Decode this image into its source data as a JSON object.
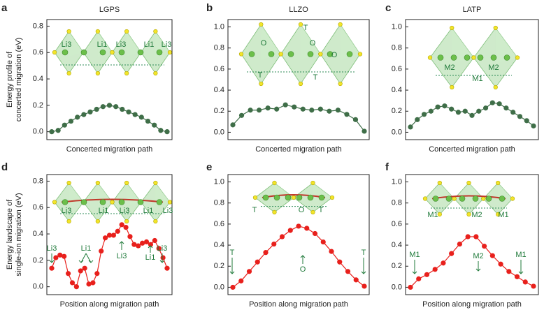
{
  "chart_data": [
    {
      "type": "line",
      "panel": "a",
      "title": "LGPS",
      "ylabel": [
        "Energy profile of",
        "concerted migration (eV)"
      ],
      "xlabel": "Concerted migration path",
      "color": "#3f6e48",
      "values": [
        0.0,
        0.01,
        0.05,
        0.08,
        0.11,
        0.13,
        0.15,
        0.17,
        0.19,
        0.2,
        0.19,
        0.17,
        0.15,
        0.13,
        0.11,
        0.08,
        0.05,
        0.01,
        0.0
      ],
      "ylim": [
        -0.06,
        0.85
      ],
      "yticks": [
        {
          "value": 0,
          "label": "0.0"
        },
        {
          "value": 0.2,
          "label": "0.2"
        },
        {
          "value": 0.4,
          "label": "0.4"
        },
        {
          "value": 0.6,
          "label": "0.6"
        },
        {
          "value": 0.8,
          "label": "0.8"
        }
      ],
      "annotations": [
        "Li3",
        "Li1",
        "Li3",
        "Li1",
        "Li3"
      ]
    },
    {
      "type": "line",
      "panel": "b",
      "title": "LLZO",
      "xlabel": "Concerted migration path",
      "color": "#3f6e48",
      "values": [
        0.07,
        0.16,
        0.21,
        0.21,
        0.23,
        0.22,
        0.26,
        0.24,
        0.22,
        0.21,
        0.22,
        0.2,
        0.21,
        0.17,
        0.12,
        0.01
      ],
      "ylim": [
        -0.07,
        1.07
      ],
      "yticks": [
        {
          "value": 0,
          "label": "0.0"
        },
        {
          "value": 0.2,
          "label": "0.2"
        },
        {
          "value": 0.4,
          "label": "0.4"
        },
        {
          "value": 0.6,
          "label": "0.6"
        },
        {
          "value": 0.8,
          "label": "0.8"
        },
        {
          "value": 1,
          "label": "1.0"
        }
      ],
      "annotations": [
        "O",
        "T",
        "O",
        "O",
        "T",
        "T"
      ]
    },
    {
      "type": "line",
      "panel": "c",
      "title": "LATP",
      "xlabel": "Concerted migration path",
      "color": "#3f6e48",
      "values": [
        0.05,
        0.12,
        0.17,
        0.2,
        0.24,
        0.25,
        0.22,
        0.19,
        0.2,
        0.16,
        0.2,
        0.23,
        0.28,
        0.27,
        0.23,
        0.19,
        0.15,
        0.11,
        0.06
      ],
      "ylim": [
        -0.07,
        1.07
      ],
      "yticks": [
        {
          "value": 0,
          "label": "0.0"
        },
        {
          "value": 0.2,
          "label": "0.2"
        },
        {
          "value": 0.4,
          "label": "0.4"
        },
        {
          "value": 0.6,
          "label": "0.6"
        },
        {
          "value": 0.8,
          "label": "0.8"
        },
        {
          "value": 1,
          "label": "1.0"
        }
      ],
      "annotations": [
        "M2",
        "M2",
        "M1"
      ]
    },
    {
      "type": "line",
      "panel": "d",
      "ylabel": [
        "Energy landscape of",
        "single-ion migration (eV)"
      ],
      "xlabel": "Position along migration path",
      "color": "#e8201c",
      "values": [
        0.14,
        0.22,
        0.24,
        0.23,
        0.1,
        0.03,
        0.0,
        0.12,
        0.14,
        0.02,
        0.03,
        0.1,
        0.27,
        0.37,
        0.39,
        0.39,
        0.42,
        0.47,
        0.45,
        0.38,
        0.32,
        0.31,
        0.33,
        0.34,
        0.32,
        0.35,
        0.29,
        0.22,
        0.14
      ],
      "ylim": [
        -0.06,
        0.85
      ],
      "yticks": [
        {
          "value": 0,
          "label": "0.0"
        },
        {
          "value": 0.2,
          "label": "0.2"
        },
        {
          "value": 0.4,
          "label": "0.4"
        },
        {
          "value": 0.6,
          "label": "0.6"
        },
        {
          "value": 0.8,
          "label": "0.8"
        }
      ],
      "annotations": [
        "Li3",
        "Li1",
        "Li3",
        "Li1",
        "Li3",
        "Li3",
        "Li1",
        "Li3",
        "Li1",
        "Li3"
      ]
    },
    {
      "type": "line",
      "panel": "e",
      "xlabel": "Position along migration path",
      "color": "#e8201c",
      "values": [
        0.0,
        0.06,
        0.15,
        0.24,
        0.33,
        0.41,
        0.48,
        0.54,
        0.58,
        0.56,
        0.51,
        0.43,
        0.34,
        0.24,
        0.15,
        0.07,
        0.01
      ],
      "ylim": [
        -0.07,
        1.07
      ],
      "yticks": [
        {
          "value": 0,
          "label": "0.0"
        },
        {
          "value": 0.2,
          "label": "0.2"
        },
        {
          "value": 0.4,
          "label": "0.4"
        },
        {
          "value": 0.6,
          "label": "0.6"
        },
        {
          "value": 0.8,
          "label": "0.8"
        },
        {
          "value": 1,
          "label": "1.0"
        }
      ],
      "annotations": [
        "T",
        "O",
        "T",
        "T",
        "O",
        "T"
      ]
    },
    {
      "type": "line",
      "panel": "f",
      "xlabel": "Position along migration path",
      "color": "#e8201c",
      "values": [
        0.0,
        0.08,
        0.12,
        0.17,
        0.23,
        0.32,
        0.41,
        0.48,
        0.48,
        0.39,
        0.3,
        0.22,
        0.15,
        0.1,
        0.05,
        0.01
      ],
      "ylim": [
        -0.07,
        1.07
      ],
      "yticks": [
        {
          "value": 0,
          "label": "0.0"
        },
        {
          "value": 0.2,
          "label": "0.2"
        },
        {
          "value": 0.4,
          "label": "0.4"
        },
        {
          "value": 0.6,
          "label": "0.6"
        },
        {
          "value": 0.8,
          "label": "0.8"
        },
        {
          "value": 1,
          "label": "1.0"
        }
      ],
      "annotations": [
        "M1",
        "M2",
        "M1",
        "M1",
        "M2",
        "M1"
      ]
    }
  ]
}
